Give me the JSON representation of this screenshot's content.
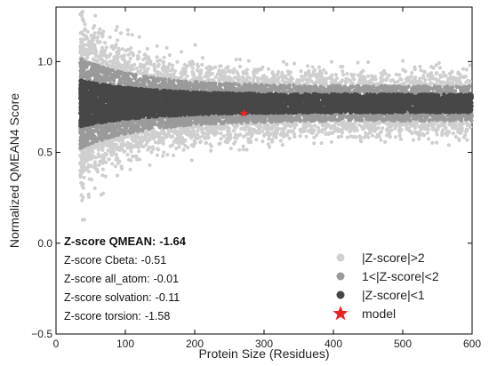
{
  "chart_data": {
    "type": "scatter",
    "title": "",
    "xlabel": "Protein Size (Residues)",
    "ylabel": "Normalized QMEAN4 Score",
    "xlim": [
      0,
      600
    ],
    "ylim": [
      -0.5,
      1.3
    ],
    "xticks": [
      "0",
      "100",
      "200",
      "300",
      "400",
      "500",
      "600"
    ],
    "yticks": [
      "−0.5",
      "0.0",
      "0.5",
      "1.0"
    ],
    "grid": false,
    "legend_position": "bottom-right",
    "series": [
      {
        "name": "|Z-score|>2",
        "color": "#cfcfcf",
        "description_band": {
          "x": [
            35,
            600
          ],
          "y_center": 0.77,
          "spread": 0.16
        }
      },
      {
        "name": "1<|Z-score|<2",
        "color": "#9a9a9a",
        "description_band": {
          "x": [
            35,
            600
          ],
          "y_center": 0.77,
          "spread": 0.09
        }
      },
      {
        "name": "|Z-score|<1",
        "color": "#474747",
        "description_band": {
          "x": [
            35,
            600
          ],
          "y_center": 0.77,
          "spread": 0.05
        }
      },
      {
        "name": "model",
        "color": "#ee2222",
        "marker": "star",
        "points": [
          {
            "x": 271,
            "y": 0.715
          }
        ]
      }
    ],
    "annotations": {
      "zscores": [
        {
          "label": "Z-score QMEAN:",
          "value": "-1.64",
          "bold": true
        },
        {
          "label": "Z-score Cbeta:",
          "value": "-0.51",
          "bold": false
        },
        {
          "label": "Z-score all_atom:",
          "value": "-0.01",
          "bold": false
        },
        {
          "label": "Z-score solvation:",
          "value": "-0.11",
          "bold": false
        },
        {
          "label": "Z-score torsion:",
          "value": "-1.58",
          "bold": false
        }
      ]
    }
  }
}
